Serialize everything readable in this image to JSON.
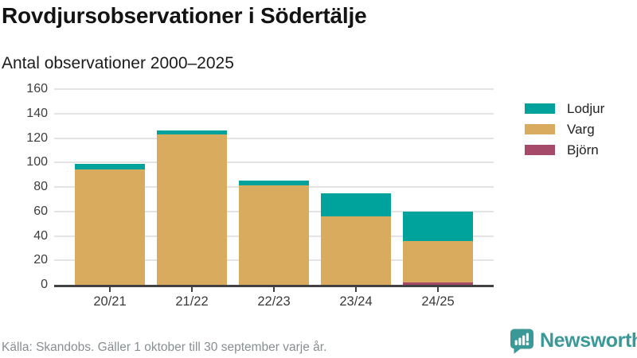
{
  "header": {
    "title": "Rovdjursobservationer i Södertälje",
    "subtitle": "Antal observationer 2000–2025"
  },
  "chart_data": {
    "type": "bar",
    "stacked": true,
    "title": "Rovdjursobservationer i Södertälje",
    "subtitle": "Antal observationer 2000–2025",
    "categories": [
      "20/21",
      "21/22",
      "22/23",
      "23/24",
      "24/25"
    ],
    "series": [
      {
        "name": "Björn",
        "color": "#a54a68",
        "values": [
          0,
          0,
          0,
          0,
          2
        ]
      },
      {
        "name": "Varg",
        "color": "#d8ab5e",
        "values": [
          94,
          123,
          81,
          56,
          34
        ]
      },
      {
        "name": "Lodjur",
        "color": "#00a39b",
        "values": [
          5,
          3,
          4,
          19,
          24
        ]
      }
    ],
    "legend": [
      {
        "label": "Lodjur",
        "color": "#00a39b"
      },
      {
        "label": "Varg",
        "color": "#d8ab5e"
      },
      {
        "label": "Björn",
        "color": "#a54a68"
      }
    ],
    "legend_position": "right",
    "xlabel": "",
    "ylabel": "",
    "ylim": [
      0,
      160
    ],
    "yticks": [
      0,
      20,
      40,
      60,
      80,
      100,
      120,
      140,
      160
    ],
    "grid": true
  },
  "footer": {
    "source": "Källa: Skandobs. Gäller 1 oktober till 30 september varje år.",
    "brand": "Newsworthy"
  },
  "colors": {
    "axis": "#414141",
    "gridline": "#e4e4e4",
    "tick_label": "#3d3d3d",
    "source_text": "#898f91",
    "brand_teal": "#3a9897"
  }
}
